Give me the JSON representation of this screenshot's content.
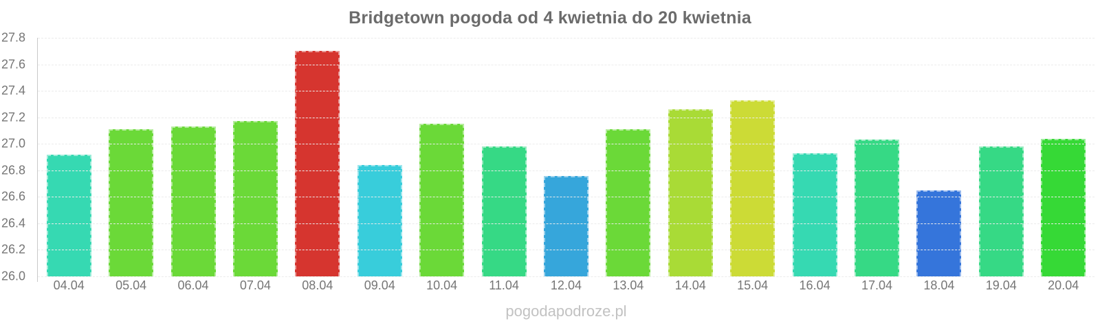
{
  "title": "Bridgetown pogoda od 4 kwietnia do 20 kwietnia",
  "watermark": "pogodapodroze.pl",
  "colors": {
    "background": "#ffffff",
    "title_text": "#6b6b6b",
    "tick_text": "#767676",
    "axis_line": "#c9c9c9",
    "gridline": "#ebebeb",
    "watermark_text": "#c2c2c2"
  },
  "chart_data": {
    "type": "bar",
    "title": "Bridgetown pogoda od 4 kwietnia do 20 kwietnia",
    "xlabel": "",
    "ylabel": "",
    "categories": [
      "04.04",
      "05.04",
      "06.04",
      "07.04",
      "08.04",
      "09.04",
      "10.04",
      "11.04",
      "12.04",
      "13.04",
      "14.04",
      "15.04",
      "16.04",
      "17.04",
      "18.04",
      "19.04",
      "20.04"
    ],
    "values": [
      26.92,
      27.11,
      27.13,
      27.17,
      27.7,
      26.84,
      27.15,
      26.98,
      26.76,
      27.11,
      27.26,
      27.33,
      26.93,
      27.03,
      26.65,
      26.98,
      27.04
    ],
    "bar_colors": [
      "#36d9b2",
      "#6bd938",
      "#6bd938",
      "#6bd938",
      "#d6352f",
      "#38cddb",
      "#6bd938",
      "#36d985",
      "#36a6db",
      "#6bd938",
      "#a9db36",
      "#ccdb36",
      "#36d9b2",
      "#36d985",
      "#3575db",
      "#36d985",
      "#36d936"
    ],
    "ylim": [
      26.0,
      27.8
    ],
    "ytick_step": 0.2,
    "ytick_labels": [
      "26.0",
      "26.2",
      "26.4",
      "26.6",
      "26.8",
      "27.0",
      "27.2",
      "27.4",
      "27.6",
      "27.8"
    ],
    "grid": true,
    "legend": false,
    "legend_position": "none"
  }
}
